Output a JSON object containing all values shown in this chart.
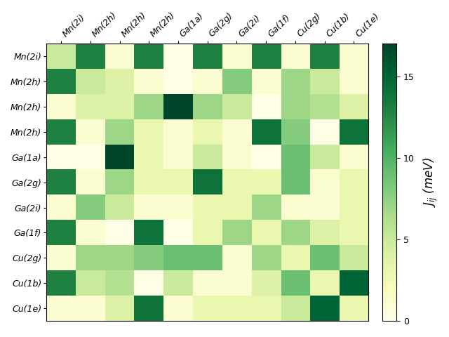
{
  "labels": [
    "Mn(2i)",
    "Mn(2h)",
    "Mn(2h)",
    "Mn(2h)",
    "Ga(1a)",
    "Ga(2g)",
    "Ga(2i)",
    "Ga(1f)",
    "Cu(2g)",
    "Cu(1b)",
    "Cu(1e)"
  ],
  "matrix": [
    [
      5,
      13,
      1,
      13,
      0,
      13,
      1,
      13,
      1,
      13,
      1
    ],
    [
      13,
      5,
      4,
      1,
      0,
      1,
      8,
      1,
      7,
      5,
      1
    ],
    [
      1,
      4,
      4,
      7,
      17,
      7,
      5,
      0,
      7,
      6,
      4
    ],
    [
      13,
      1,
      7,
      3,
      1,
      3,
      1,
      14,
      8,
      0,
      14
    ],
    [
      0,
      0,
      17,
      3,
      1,
      5,
      1,
      0,
      9,
      5,
      1
    ],
    [
      13,
      1,
      7,
      3,
      3,
      14,
      3,
      3,
      9,
      1,
      3
    ],
    [
      1,
      8,
      5,
      1,
      1,
      3,
      3,
      7,
      1,
      1,
      3
    ],
    [
      13,
      1,
      0,
      14,
      0,
      3,
      7,
      3,
      7,
      4,
      3
    ],
    [
      1,
      7,
      7,
      8,
      9,
      9,
      1,
      7,
      3,
      9,
      5
    ],
    [
      13,
      5,
      6,
      0,
      5,
      1,
      1,
      4,
      9,
      3,
      15
    ],
    [
      1,
      1,
      4,
      14,
      1,
      3,
      3,
      3,
      5,
      15,
      3
    ]
  ],
  "vmin": 0,
  "vmax": 17,
  "cmap": "YlGn",
  "colorbar_label": "$J_{ij}$ (meV)",
  "colorbar_ticks": [
    0,
    5,
    10,
    15
  ],
  "figsize": [
    6.4,
    4.8
  ],
  "dpi": 100
}
